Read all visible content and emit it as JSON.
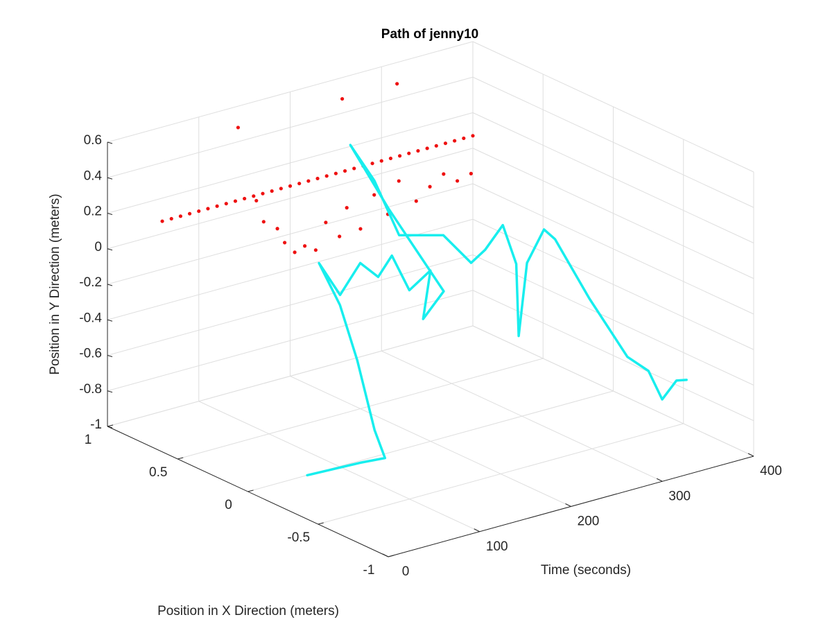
{
  "chart_data": {
    "type": "line3d",
    "title": "Path of jenny10",
    "xlabel": "Time (seconds)",
    "zlabel": "Position in X Direction (meters)",
    "ylabel": "Position in Y Direction (meters)",
    "tlim": [
      0,
      400
    ],
    "tticks": [
      0,
      100,
      200,
      300,
      400
    ],
    "xlim": [
      -1,
      1
    ],
    "xticks": [
      -1,
      -0.5,
      0,
      0.5,
      1
    ],
    "ylim": [
      -1,
      0.6
    ],
    "yticks": [
      -1,
      -0.8,
      -0.6,
      -0.4,
      -0.2,
      0,
      0.2,
      0.4,
      0.6
    ],
    "grid": true,
    "series": [
      {
        "style": "line",
        "color": "#18eeee",
        "t": [
          65,
          120,
          144,
          131,
          109,
          87,
          61,
          81,
          100,
          118,
          130,
          146,
          166,
          155,
          176,
          200,
          189,
          200,
          181,
          214,
          229,
          229,
          233,
          240,
          235,
          241,
          255,
          264,
          297,
          334,
          354,
          366,
          380,
          388
        ],
        "x": [
          0,
          -0.02,
          -0.04,
          -0.05,
          -0.07,
          -0.09,
          -0.11,
          -0.13,
          -0.15,
          -0.16,
          -0.18,
          -0.2,
          -0.22,
          -0.24,
          -0.25,
          0.3,
          0.5,
          0.4,
          0.1,
          0,
          -0.1,
          -0.2,
          -0.3,
          -0.35,
          -0.4,
          -0.42,
          -0.45,
          -0.47,
          -0.5,
          -0.53,
          -0.55,
          -0.57,
          -0.58,
          -0.6
        ],
        "y": [
          -1,
          -1,
          -1,
          -0.82,
          -0.39,
          -0.04,
          0.24,
          0.04,
          0.2,
          0.1,
          0.21,
          0,
          0.09,
          -0.16,
          -0.03,
          0.2,
          0.5,
          0.32,
          0.15,
          0.14,
          0,
          0.11,
          0.28,
          0.07,
          -0.31,
          0.1,
          0.28,
          0.22,
          -0.15,
          -0.52,
          -0.62,
          -0.79,
          -0.7,
          -0.7
        ]
      },
      {
        "style": "markers",
        "color": "#ee1111",
        "t": [
          60,
          70,
          80,
          90,
          100,
          110,
          120,
          130,
          140,
          150,
          160,
          170,
          180,
          190,
          200,
          210,
          220,
          230,
          240,
          250,
          260,
          270,
          280,
          290,
          300,
          310,
          320,
          330,
          340,
          350,
          360,
          370,
          380,
          390,
          400,
          163,
          171,
          186,
          194,
          205,
          216,
          228,
          239,
          254,
          262,
          277,
          292,
          307,
          319,
          338,
          353,
          368,
          383,
          398,
          143,
          257,
          317
        ],
        "x": [
          1,
          1,
          1,
          1,
          1,
          1,
          1,
          1,
          1,
          1,
          1,
          1,
          1,
          1,
          1,
          1,
          1,
          1,
          1,
          1,
          1,
          1,
          1,
          1,
          1,
          1,
          1,
          1,
          1,
          1,
          1,
          1,
          1,
          1,
          1,
          1,
          1,
          1,
          1,
          1,
          1,
          1,
          1,
          1,
          1,
          1,
          1,
          1,
          1,
          1,
          1,
          1,
          1,
          1,
          1,
          1,
          1
        ],
        "y": [
          0.07,
          0.07,
          0.07,
          0.07,
          0.07,
          0.07,
          0.07,
          0.07,
          0.07,
          0.07,
          0.07,
          0.07,
          0.07,
          0.07,
          0.07,
          0.07,
          0.07,
          0.07,
          0.07,
          0.07,
          0.07,
          0.07,
          0.07,
          0.07,
          0.07,
          0.07,
          0.07,
          0.07,
          0.07,
          0.07,
          0.07,
          0.07,
          0.07,
          0.07,
          0.07,
          0.04,
          -0.09,
          -0.15,
          -0.24,
          -0.31,
          -0.29,
          -0.33,
          -0.19,
          -0.29,
          -0.14,
          -0.28,
          -0.11,
          -0.24,
          -0.07,
          -0.21,
          -0.15,
          -0.1,
          -0.16,
          -0.14,
          0.48,
          0.48,
          0.48
        ]
      }
    ]
  }
}
